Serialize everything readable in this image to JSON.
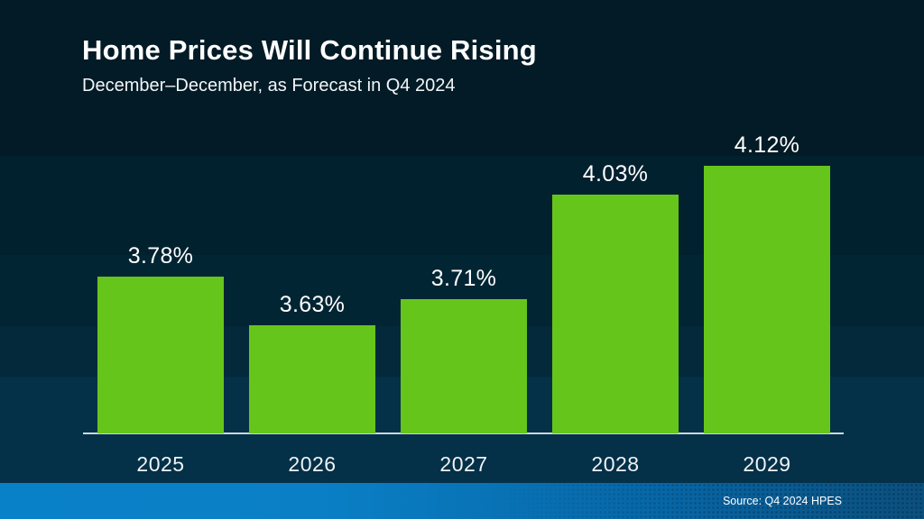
{
  "chart_data": {
    "type": "bar",
    "title": "Home Prices Will Continue Rising",
    "subtitle": "December–December, as Forecast in Q4 2024",
    "categories": [
      "2025",
      "2026",
      "2027",
      "2028",
      "2029"
    ],
    "values": [
      3.78,
      3.63,
      3.71,
      4.03,
      4.12
    ],
    "value_labels": [
      "3.78%",
      "3.63%",
      "3.71%",
      "4.03%",
      "4.12%"
    ],
    "unit": "%",
    "ylim": [
      3.3,
      4.3
    ],
    "grid": false,
    "legend": false,
    "bar_color": "#66c51a",
    "source": "Source: Q4 2024 HPES"
  },
  "colors": {
    "bar_green": "#66c51a",
    "background_top": "#031b26",
    "background_bottom": "#043048",
    "axis_line": "#d9e1e5",
    "text": "#ffffff",
    "footer_blue_left": "#0981c9",
    "footer_blue_right": "#0b4f7d"
  }
}
